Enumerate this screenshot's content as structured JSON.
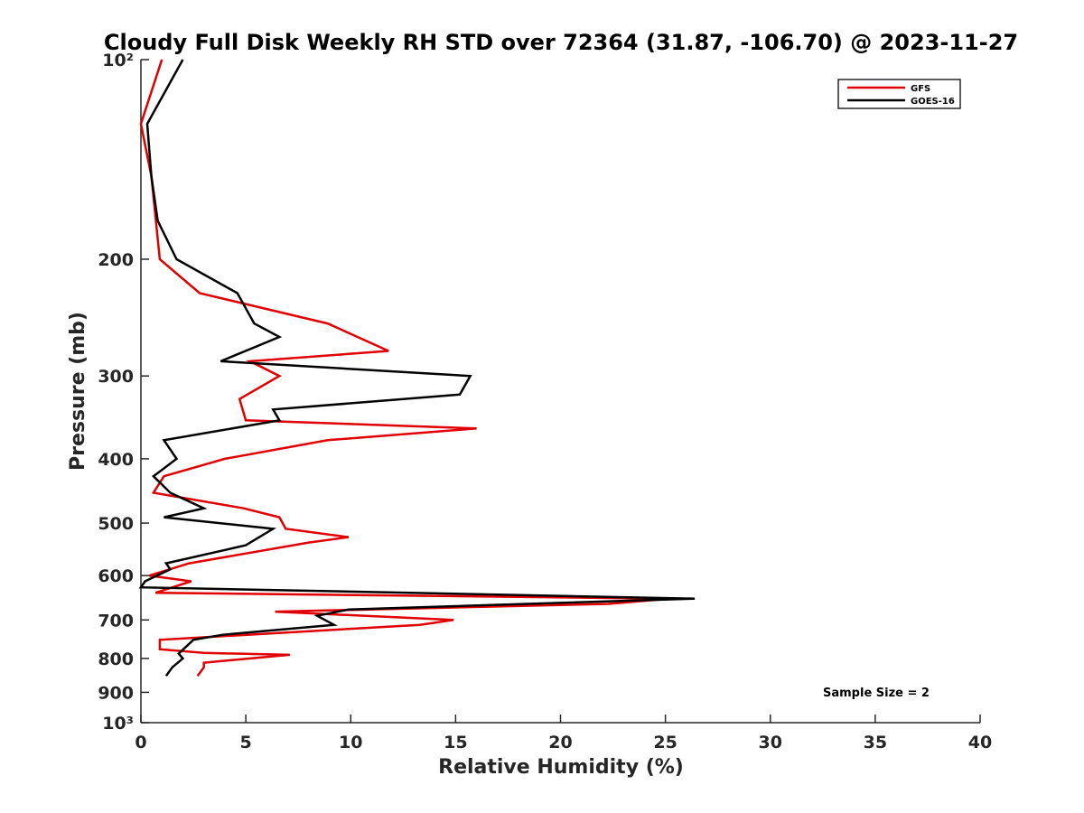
{
  "chart_data": {
    "type": "line",
    "title": "Cloudy Full Disk Weekly RH STD over 72364 (31.87, -106.70) @ 2023-11-27",
    "xlabel": "Relative Humidity (%)",
    "ylabel": "Pressure (mb)",
    "xlim": [
      0,
      40
    ],
    "ylim": [
      100,
      1000
    ],
    "y_scale": "log",
    "y_reversed": true,
    "x_ticks": [
      0,
      5,
      10,
      15,
      20,
      25,
      30,
      35,
      40
    ],
    "x_tick_labels": [
      "0",
      "5",
      "10",
      "15",
      "20",
      "25",
      "30",
      "35",
      "40"
    ],
    "y_ticks": [
      100,
      200,
      300,
      400,
      500,
      600,
      700,
      800,
      900,
      1000
    ],
    "y_tick_labels": [
      "10²",
      "200",
      "300",
      "400",
      "500",
      "600",
      "700",
      "800",
      "900",
      "10³"
    ],
    "grid": false,
    "legend_position": "top-right",
    "annotation": "Sample Size = 2",
    "series": [
      {
        "name": "GFS",
        "color": "#e00000",
        "points": [
          [
            1.0,
            100
          ],
          [
            0.0,
            125
          ],
          [
            0.5,
            150
          ],
          [
            0.9,
            200
          ],
          [
            2.8,
            225
          ],
          [
            8.9,
            250
          ],
          [
            11.8,
            275
          ],
          [
            5.2,
            285
          ],
          [
            6.6,
            300
          ],
          [
            4.7,
            325
          ],
          [
            5.0,
            350
          ],
          [
            16.0,
            360
          ],
          [
            8.9,
            375
          ],
          [
            4.0,
            400
          ],
          [
            1.1,
            425
          ],
          [
            0.6,
            450
          ],
          [
            4.9,
            475
          ],
          [
            6.6,
            490
          ],
          [
            6.9,
            510
          ],
          [
            9.9,
            525
          ],
          [
            8.0,
            535
          ],
          [
            2.3,
            575
          ],
          [
            0.4,
            600
          ],
          [
            2.4,
            612
          ],
          [
            1.5,
            625
          ],
          [
            0.7,
            637
          ],
          [
            25.2,
            650
          ],
          [
            22.3,
            662
          ],
          [
            6.4,
            680
          ],
          [
            14.9,
            700
          ],
          [
            13.3,
            712
          ],
          [
            0.9,
            750
          ],
          [
            0.9,
            775
          ],
          [
            3.0,
            785
          ],
          [
            7.1,
            790
          ],
          [
            3.0,
            812
          ],
          [
            3.0,
            825
          ],
          [
            2.7,
            850
          ]
        ]
      },
      {
        "name": "GOES-16",
        "color": "#000000",
        "points": [
          [
            2.0,
            100
          ],
          [
            0.3,
            125
          ],
          [
            0.5,
            150
          ],
          [
            0.8,
            175
          ],
          [
            1.7,
            200
          ],
          [
            4.6,
            225
          ],
          [
            5.4,
            250
          ],
          [
            6.6,
            262
          ],
          [
            3.8,
            285
          ],
          [
            15.7,
            300
          ],
          [
            15.2,
            320
          ],
          [
            6.3,
            337
          ],
          [
            6.6,
            350
          ],
          [
            1.1,
            375
          ],
          [
            1.7,
            400
          ],
          [
            0.6,
            425
          ],
          [
            1.4,
            450
          ],
          [
            3.0,
            475
          ],
          [
            1.1,
            490
          ],
          [
            6.3,
            510
          ],
          [
            5.0,
            540
          ],
          [
            1.2,
            575
          ],
          [
            1.4,
            587
          ],
          [
            0.2,
            612
          ],
          [
            0.0,
            625
          ],
          [
            26.4,
            650
          ],
          [
            9.9,
            675
          ],
          [
            8.4,
            690
          ],
          [
            9.2,
            712
          ],
          [
            3.9,
            737
          ],
          [
            2.5,
            750
          ],
          [
            1.8,
            787
          ],
          [
            2.0,
            800
          ],
          [
            1.5,
            825
          ],
          [
            1.2,
            850
          ]
        ]
      }
    ]
  }
}
